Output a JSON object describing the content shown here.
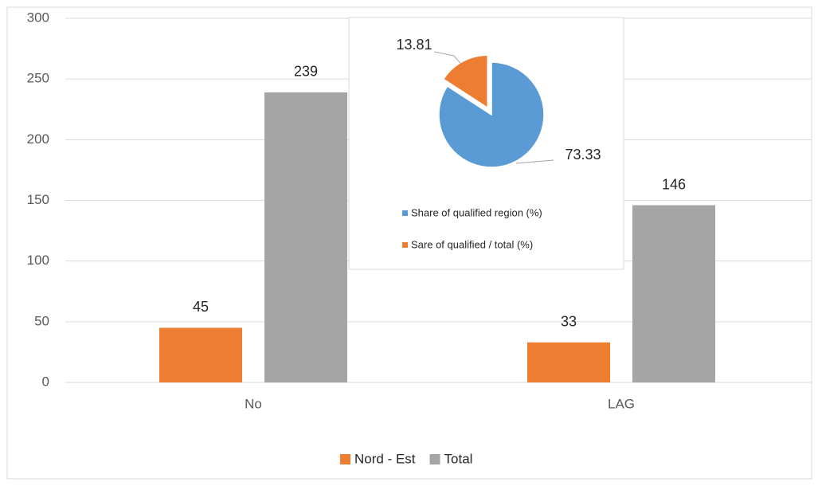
{
  "chart_data": [
    {
      "type": "bar",
      "categories": [
        "No",
        "LAG"
      ],
      "series": [
        {
          "name": "Nord - Est",
          "color": "#ed7d31",
          "values": [
            45,
            33
          ]
        },
        {
          "name": "Total",
          "color": "#a5a5a5",
          "values": [
            239,
            146
          ]
        }
      ],
      "ylim": [
        0,
        300
      ],
      "yticks": [
        0,
        50,
        100,
        150,
        200,
        250,
        300
      ],
      "grid": true,
      "legend": "bottom"
    },
    {
      "type": "pie",
      "labels": [
        "Share of qualified region (%)",
        "Sare of qualified / total (%)"
      ],
      "values": [
        73.33,
        13.81
      ],
      "colors": [
        "#5b9bd5",
        "#ed7d31"
      ],
      "legend": "bottom"
    }
  ]
}
